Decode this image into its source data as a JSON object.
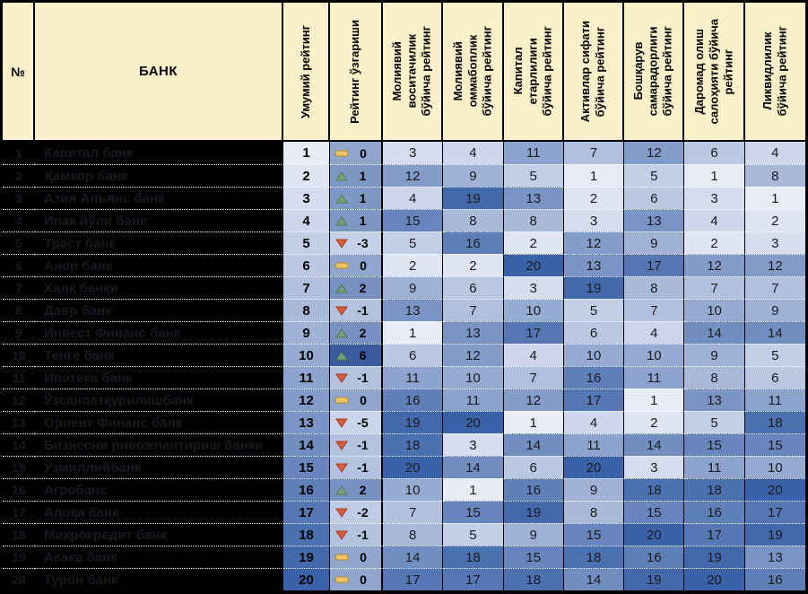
{
  "header": {
    "num": "№",
    "bank": "БАНК",
    "overall": "Умумий рейтинг",
    "change": "Рейтинг ўзгариши",
    "metrics": [
      "Молиявий\nвоситачилик\nбўйича рейтинг",
      "Молиявий\nоммабоплик\nбўйича рейтинг",
      "Капитал\nетарлилиги\nбўйича рейтинг",
      "Активлар сифати\nбўйича рейтинг",
      "Бошқарув\nсамарадорлиги\nбўйича рейтинг",
      "Даромад олиш\nсалоҳияти бўйича\nрейтинг",
      "Ликвидлилик\nбўйича рейтинг"
    ]
  },
  "chart_data": {
    "type": "heatmap",
    "title": "",
    "value_domain": [
      1,
      20
    ],
    "legend": "cell shade: light = rating 1 (best), dark = rating 20 (worst)",
    "columns": [
      "Умумий рейтинг",
      "Рейтинг ўзгариши",
      "Молиявий воситачилик бўйича рейтинг",
      "Молиявий оммабоплик бўйича рейтинг",
      "Капитал етарлилиги бўйича рейтинг",
      "Активлар сифати бўйича рейтинг",
      "Бошқарув самарадорлиги бўйича рейтинг",
      "Даромад олиш салоҳияти бўйича рейтинг",
      "Ликвидлилик бўйича рейтинг"
    ],
    "rows": [
      {
        "rank": 1,
        "bank": "Капитал банк",
        "change": 0,
        "ratings": [
          3,
          4,
          11,
          7,
          12,
          6,
          4
        ]
      },
      {
        "rank": 2,
        "bank": "Ҳамкор банк",
        "change": 1,
        "ratings": [
          12,
          9,
          5,
          1,
          5,
          1,
          8
        ]
      },
      {
        "rank": 3,
        "bank": "Азия Альянс банк",
        "change": 1,
        "ratings": [
          4,
          19,
          13,
          2,
          6,
          3,
          1
        ]
      },
      {
        "rank": 4,
        "bank": "Ипак йўли банк",
        "change": 1,
        "ratings": [
          15,
          8,
          8,
          3,
          13,
          4,
          2
        ]
      },
      {
        "rank": 5,
        "bank": "Траст банк",
        "change": -3,
        "ratings": [
          5,
          16,
          2,
          12,
          9,
          2,
          3
        ]
      },
      {
        "rank": 6,
        "bank": "Анор банк",
        "change": 0,
        "ratings": [
          2,
          2,
          20,
          13,
          17,
          12,
          12
        ]
      },
      {
        "rank": 7,
        "bank": "Халқ банки",
        "change": 2,
        "ratings": [
          9,
          6,
          3,
          19,
          8,
          7,
          7
        ]
      },
      {
        "rank": 8,
        "bank": "Давр банк",
        "change": -1,
        "ratings": [
          13,
          7,
          10,
          5,
          7,
          10,
          9
        ]
      },
      {
        "rank": 9,
        "bank": "Инвест Финанс банк",
        "change": 2,
        "ratings": [
          1,
          13,
          17,
          6,
          4,
          14,
          14
        ]
      },
      {
        "rank": 10,
        "bank": "Тенге банк",
        "change": 6,
        "ratings": [
          6,
          12,
          4,
          10,
          10,
          9,
          5
        ]
      },
      {
        "rank": 11,
        "bank": "Ипотека банк",
        "change": -1,
        "ratings": [
          11,
          10,
          7,
          16,
          11,
          8,
          6
        ]
      },
      {
        "rank": 12,
        "bank": "Ўзсаноатқурилишбанк",
        "change": 0,
        "ratings": [
          16,
          11,
          12,
          17,
          1,
          13,
          11
        ]
      },
      {
        "rank": 13,
        "bank": "Ориент Финанс банк",
        "change": -5,
        "ratings": [
          19,
          20,
          1,
          4,
          2,
          5,
          18
        ]
      },
      {
        "rank": 14,
        "bank": "Бизнесни ривожлантириш банки",
        "change": -1,
        "ratings": [
          18,
          3,
          14,
          11,
          14,
          15,
          15
        ]
      },
      {
        "rank": 15,
        "bank": "Ўзмиллийбанк",
        "change": -1,
        "ratings": [
          20,
          14,
          6,
          20,
          3,
          11,
          10
        ]
      },
      {
        "rank": 16,
        "bank": "Агробанк",
        "change": 2,
        "ratings": [
          10,
          1,
          16,
          9,
          18,
          18,
          20
        ]
      },
      {
        "rank": 17,
        "bank": "Алоқа банк",
        "change": -2,
        "ratings": [
          7,
          15,
          19,
          8,
          15,
          16,
          17
        ]
      },
      {
        "rank": 18,
        "bank": "Микрокредит банк",
        "change": -1,
        "ratings": [
          8,
          5,
          9,
          15,
          20,
          17,
          19
        ]
      },
      {
        "rank": 19,
        "bank": "Асака банк",
        "change": 0,
        "ratings": [
          14,
          18,
          15,
          18,
          16,
          19,
          13
        ]
      },
      {
        "rank": 20,
        "bank": "Турон банк",
        "change": 0,
        "ratings": [
          17,
          17,
          18,
          14,
          19,
          20,
          16
        ]
      }
    ]
  },
  "colors": {
    "header_bg": "#FCF0CA",
    "grid_line": "#000000",
    "row_divider": "#FFFFFF",
    "redaction_bg": "#000000",
    "redacted_text": "#191922",
    "scale_light": "#E8ECF7",
    "scale_dark": "#3A62A8",
    "change_scale": {
      "-5": "#C9D5EB",
      "-4": "#C7D3EA",
      "-3": "#C5D1E9",
      "-2": "#BFCCE6",
      "-1": "#B2C2DF",
      "0": "#91A6CD",
      "1": "#7E98C6",
      "2": "#7691C2",
      "3": "#6685B9",
      "4": "#5777B0",
      "5": "#4869A7",
      "6": "#3A5B9E"
    },
    "icon_up_fill": "#74A07D",
    "icon_up_stroke": "#4F7A51",
    "icon_down_fill": "#D75F41",
    "icon_down_stroke": "#A93B21",
    "icon_flat_fill": "#EDC468",
    "icon_flat_stroke": "#B08C28"
  }
}
